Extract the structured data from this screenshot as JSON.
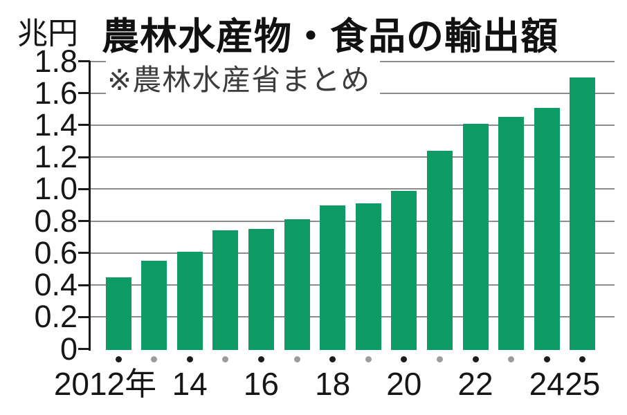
{
  "chart_data": {
    "type": "bar",
    "title": "農林水産物・食品の輸出額",
    "note": "※農林水産省まとめ",
    "unit_label": "兆円",
    "xlabel": "",
    "ylabel": "兆円",
    "ylim": [
      0,
      1.8
    ],
    "grid": true,
    "categories": [
      "2012",
      "2013",
      "2014",
      "2015",
      "2016",
      "2017",
      "2018",
      "2019",
      "2020",
      "2021",
      "2022",
      "2023",
      "2024",
      "2025"
    ],
    "values": [
      0.45,
      0.55,
      0.61,
      0.74,
      0.75,
      0.81,
      0.9,
      0.91,
      0.99,
      1.24,
      1.41,
      1.45,
      1.51,
      1.7
    ],
    "y_tick_labels": [
      "0",
      "0.2",
      "0.4",
      "0.6",
      "0.8",
      "1.0",
      "1.2",
      "1.4",
      "1.6",
      "1.8"
    ],
    "y_tick_values": [
      0,
      0.2,
      0.4,
      0.6,
      0.8,
      1.0,
      1.2,
      1.4,
      1.6,
      1.8
    ],
    "x_tick_labels": [
      {
        "text": "2012年",
        "bar_index": 0
      },
      {
        "text": "14",
        "bar_index": 2
      },
      {
        "text": "16",
        "bar_index": 4
      },
      {
        "text": "18",
        "bar_index": 6
      },
      {
        "text": "20",
        "bar_index": 8
      },
      {
        "text": "22",
        "bar_index": 10
      },
      {
        "text": "24",
        "bar_index": 12
      },
      {
        "text": "25",
        "bar_index": 13
      }
    ],
    "marker_pattern": [
      "black",
      "gray",
      "black",
      "gray",
      "black",
      "gray",
      "black",
      "gray",
      "black",
      "gray",
      "black",
      "gray",
      "black",
      "black"
    ],
    "colors": {
      "bar": "#0e9b65",
      "gridline": "#8c8c8c",
      "axis": "#1a1a1a",
      "marker_black": "#1c1c1c",
      "marker_gray": "#9c9c9c",
      "title_text": "#111111",
      "note_text": "#3c3c3c",
      "background": "#ffffff"
    }
  }
}
